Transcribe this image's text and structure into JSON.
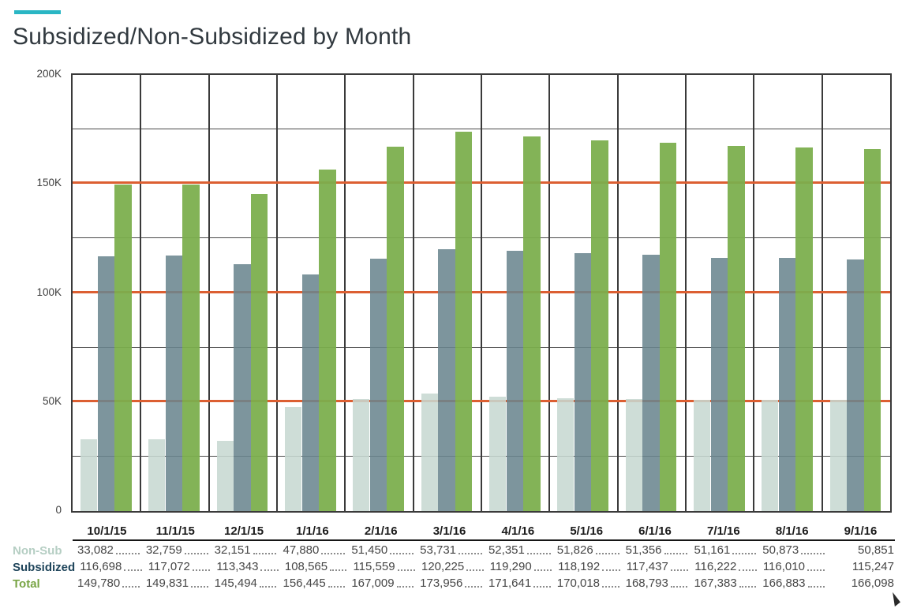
{
  "page": {
    "title": "Subsidized/Non-Subsidized by Month",
    "accent_color": "#2ab6c4"
  },
  "chart_data": {
    "type": "bar",
    "title": "Subsidized/Non-Subsidized by Month",
    "categories": [
      "10/1/15",
      "11/1/15",
      "12/1/15",
      "1/1/16",
      "2/1/16",
      "3/1/16",
      "4/1/16",
      "5/1/16",
      "6/1/16",
      "7/1/16",
      "8/1/16",
      "9/1/16"
    ],
    "series": [
      {
        "name": "Non-Sub",
        "color": "#c7d8d1",
        "values": [
          33082,
          32759,
          32151,
          47880,
          51450,
          53731,
          52351,
          51826,
          51356,
          51161,
          50873,
          50851
        ]
      },
      {
        "name": "Subsidized",
        "color": "#6a858f",
        "values": [
          116698,
          117072,
          113343,
          108565,
          115559,
          120225,
          119290,
          118192,
          117437,
          116222,
          116010,
          115247
        ]
      },
      {
        "name": "Total",
        "color": "#7bae4c",
        "values": [
          149780,
          149831,
          145494,
          156445,
          167009,
          173956,
          171641,
          170018,
          168793,
          167383,
          166883,
          166098
        ]
      }
    ],
    "ylim": [
      0,
      200000
    ],
    "y_ticks": [
      {
        "label": "200K",
        "value": 200000
      },
      {
        "label": "150K",
        "value": 150000
      },
      {
        "label": "100K",
        "value": 100000
      },
      {
        "label": "50K",
        "value": 50000
      },
      {
        "label": "0",
        "value": 0
      }
    ],
    "grid_interval": 25000,
    "gridline_color": "#4a4a4a",
    "reference_lines": {
      "values": [
        50000,
        100000,
        150000
      ],
      "color": "#dc5f32"
    },
    "legend_position": "table-below",
    "xlabel": "",
    "ylabel": ""
  },
  "table": {
    "columns": [
      "10/1/15",
      "11/1/15",
      "12/1/15",
      "1/1/16",
      "2/1/16",
      "3/1/16",
      "4/1/16",
      "5/1/16",
      "6/1/16",
      "7/1/16",
      "8/1/16",
      "9/1/16"
    ],
    "rows": [
      {
        "label": "Non-Sub",
        "color": "#b5cec3",
        "values": [
          "33,082",
          "32,759",
          "32,151",
          "47,880",
          "51,450",
          "53,731",
          "52,351",
          "51,826",
          "51,356",
          "51,161",
          "50,873",
          "50,851"
        ]
      },
      {
        "label": "Subsidized",
        "color": "#1f455b",
        "values": [
          "116,698",
          "117,072",
          "113,343",
          "108,565",
          "115,559",
          "120,225",
          "119,290",
          "118,192",
          "117,437",
          "116,222",
          "116,010",
          "115,247"
        ]
      },
      {
        "label": "Total",
        "color": "#78a444",
        "values": [
          "149,780",
          "149,831",
          "145,494",
          "156,445",
          "167,009",
          "173,956",
          "171,641",
          "170,018",
          "168,793",
          "167,383",
          "166,883",
          "166,098"
        ]
      }
    ]
  }
}
